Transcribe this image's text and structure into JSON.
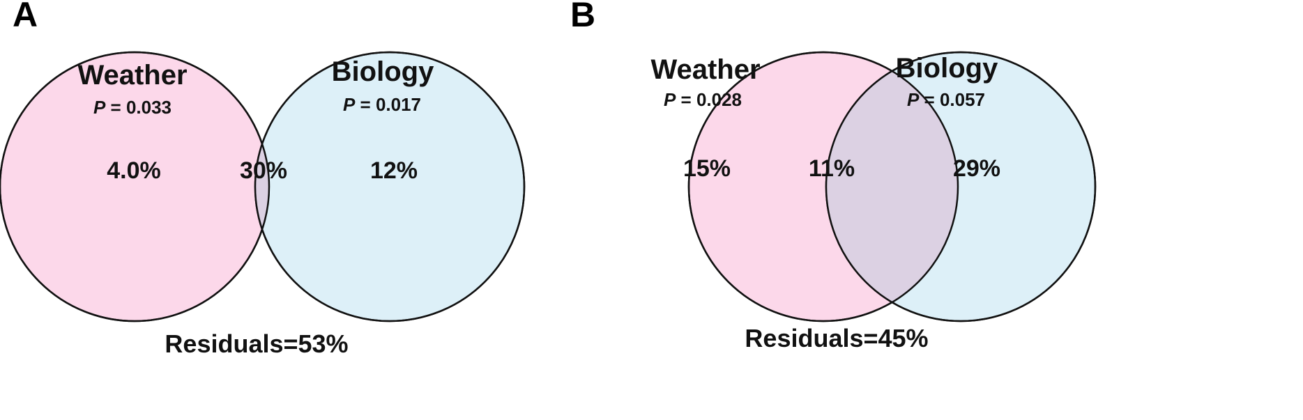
{
  "panels": [
    {
      "letter": "A",
      "left_set": {
        "name": "Weather",
        "p_label": "P",
        "p_value": "= 0.033",
        "unique": "4.0%",
        "color": "#fcd8ea"
      },
      "right_set": {
        "name": "Biology",
        "p_label": "P",
        "p_value": "= 0.017",
        "unique": "12%",
        "color": "#ddf0f8"
      },
      "shared": "30%",
      "residuals": "Residuals=53%"
    },
    {
      "letter": "B",
      "left_set": {
        "name": "Weather",
        "p_label": "P",
        "p_value": "= 0.028",
        "unique": "15%",
        "color": "#fcd8ea"
      },
      "right_set": {
        "name": "Biology",
        "p_label": "P",
        "p_value": "= 0.057",
        "unique": "29%",
        "color": "#ddf0f8"
      },
      "shared": "11%",
      "residuals": "Residuals=45%"
    }
  ],
  "overlap_color": "#dcd1e3"
}
